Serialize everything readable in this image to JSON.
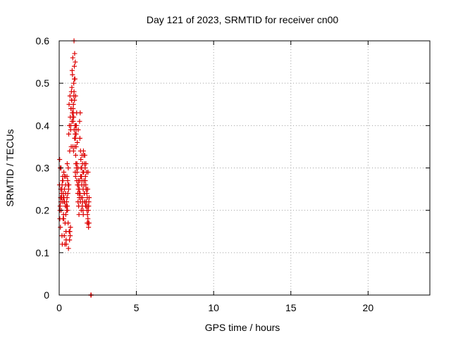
{
  "chart_data": {
    "type": "scatter",
    "title": "Day 121 of 2023, SRMTID for receiver cn00",
    "xlabel": "GPS time / hours",
    "ylabel": "SRMTID / TECUs",
    "xlim": [
      0,
      24
    ],
    "ylim": [
      0,
      0.6
    ],
    "xticks": [
      0,
      5,
      10,
      15,
      20
    ],
    "xtick_labels": [
      "0",
      "5",
      "10",
      "15",
      "20"
    ],
    "yticks": [
      0,
      0.1,
      0.2,
      0.3,
      0.4,
      0.5,
      0.6
    ],
    "ytick_labels": [
      "0",
      "0.1",
      "0.2",
      "0.3",
      "0.4",
      "0.5",
      "0.6"
    ],
    "grid": true,
    "marker": "+",
    "color": "#dd0000",
    "series": [
      {
        "x": [
          0.02,
          0.04,
          0.06,
          0.08,
          0.1,
          0.12,
          0.14,
          0.16,
          0.18,
          0.2,
          0.22,
          0.24,
          0.26,
          0.28,
          0.3,
          0.32,
          0.34,
          0.36,
          0.38,
          0.4,
          0.42,
          0.44,
          0.46,
          0.48,
          0.5,
          0.52,
          0.54,
          0.56,
          0.58,
          0.6,
          0.62,
          0.64,
          0.66,
          0.68,
          0.7,
          0.72,
          0.74,
          0.76,
          0.78,
          0.8,
          0.82,
          0.84,
          0.86,
          0.88,
          0.9,
          0.92,
          0.94,
          0.96,
          0.98,
          1.0,
          1.02,
          1.04,
          1.06,
          1.08,
          1.1,
          1.12,
          1.14,
          1.16,
          1.18,
          1.2,
          1.22,
          1.24,
          1.26,
          1.28,
          1.3,
          1.32,
          1.34,
          1.36,
          1.38,
          1.4,
          1.42,
          1.44,
          1.46,
          1.48,
          1.5,
          1.52,
          1.54,
          1.56,
          1.58,
          1.6,
          1.62,
          1.64,
          1.66,
          1.68,
          1.7,
          1.72,
          1.74,
          1.76,
          1.78,
          1.8,
          1.82,
          1.84,
          1.86,
          1.88,
          1.9,
          1.92,
          1.94,
          0.05,
          0.15,
          0.25,
          0.35,
          0.45,
          0.55,
          0.65,
          0.75,
          0.85,
          0.95,
          1.05,
          1.15,
          1.25,
          1.35,
          1.45,
          1.55,
          1.65,
          1.75,
          1.85,
          0.03,
          0.13,
          0.23,
          0.33,
          0.43,
          0.53,
          0.63,
          0.73,
          0.83,
          0.93,
          1.03,
          1.13,
          1.23,
          1.33,
          1.43,
          1.53,
          1.63,
          1.73,
          1.83,
          1.93,
          0.07,
          0.17,
          0.27,
          0.37,
          0.47,
          0.57,
          0.67,
          0.77,
          0.87,
          0.97,
          1.07,
          1.17,
          1.27,
          1.37,
          1.47,
          1.57,
          1.67,
          1.77,
          1.87,
          0.09,
          0.19,
          0.29,
          0.39,
          0.49,
          0.59,
          0.69,
          0.79,
          0.89,
          0.99,
          1.09,
          1.19,
          1.29,
          1.39,
          1.49,
          1.59,
          1.69,
          1.79,
          1.89,
          0.11,
          0.21,
          0.31,
          0.41,
          0.51,
          0.61,
          0.71,
          0.81,
          0.91,
          1.01,
          1.11,
          1.21,
          1.31,
          1.41,
          1.51,
          1.61,
          1.71,
          1.81,
          1.91,
          0.96,
          1.0,
          1.04,
          0.98,
          1.02,
          1.06,
          0.92,
          0.94,
          1.08,
          1.1,
          2.05,
          2.06,
          2.07
        ],
        "y": [
          0.26,
          0.18,
          0.21,
          0.16,
          0.25,
          0.3,
          0.2,
          0.23,
          0.14,
          0.12,
          0.22,
          0.27,
          0.24,
          0.19,
          0.29,
          0.22,
          0.25,
          0.28,
          0.17,
          0.21,
          0.26,
          0.15,
          0.12,
          0.22,
          0.28,
          0.31,
          0.2,
          0.24,
          0.17,
          0.11,
          0.38,
          0.45,
          0.4,
          0.34,
          0.47,
          0.42,
          0.39,
          0.44,
          0.35,
          0.46,
          0.49,
          0.53,
          0.52,
          0.56,
          0.44,
          0.43,
          0.5,
          0.48,
          0.51,
          0.37,
          0.4,
          0.29,
          0.28,
          0.31,
          0.35,
          0.3,
          0.27,
          0.29,
          0.26,
          0.24,
          0.22,
          0.25,
          0.21,
          0.19,
          0.23,
          0.41,
          0.37,
          0.43,
          0.34,
          0.32,
          0.3,
          0.28,
          0.26,
          0.33,
          0.23,
          0.22,
          0.2,
          0.19,
          0.29,
          0.27,
          0.24,
          0.31,
          0.33,
          0.3,
          0.28,
          0.26,
          0.25,
          0.22,
          0.29,
          0.2,
          0.23,
          0.21,
          0.18,
          0.17,
          0.16,
          0.22,
          0.23,
          0.2,
          0.24,
          0.18,
          0.22,
          0.13,
          0.27,
          0.15,
          0.4,
          0.43,
          0.47,
          0.37,
          0.31,
          0.27,
          0.24,
          0.3,
          0.25,
          0.22,
          0.21,
          0.25,
          0.32,
          0.23,
          0.28,
          0.14,
          0.19,
          0.21,
          0.26,
          0.16,
          0.41,
          0.34,
          0.38,
          0.43,
          0.39,
          0.27,
          0.2,
          0.29,
          0.24,
          0.31,
          0.19,
          0.17,
          0.3,
          0.25,
          0.23,
          0.12,
          0.21,
          0.26,
          0.13,
          0.44,
          0.42,
          0.39,
          0.33,
          0.36,
          0.26,
          0.22,
          0.27,
          0.34,
          0.22,
          0.25,
          0.29,
          0.23,
          0.26,
          0.18,
          0.28,
          0.2,
          0.3,
          0.15,
          0.48,
          0.35,
          0.46,
          0.39,
          0.26,
          0.24,
          0.28,
          0.21,
          0.33,
          0.27,
          0.24,
          0.2,
          0.22,
          0.27,
          0.23,
          0.24,
          0.23,
          0.25,
          0.14,
          0.46,
          0.41,
          0.35,
          0.4,
          0.3,
          0.25,
          0.23,
          0.31,
          0.26,
          0.21,
          0.17,
          0.21,
          0.6,
          0.57,
          0.55,
          0.54,
          0.51,
          0.47,
          0.45,
          0.42,
          0.4,
          0.38,
          0.0,
          0.0,
          0.0
        ]
      }
    ]
  }
}
